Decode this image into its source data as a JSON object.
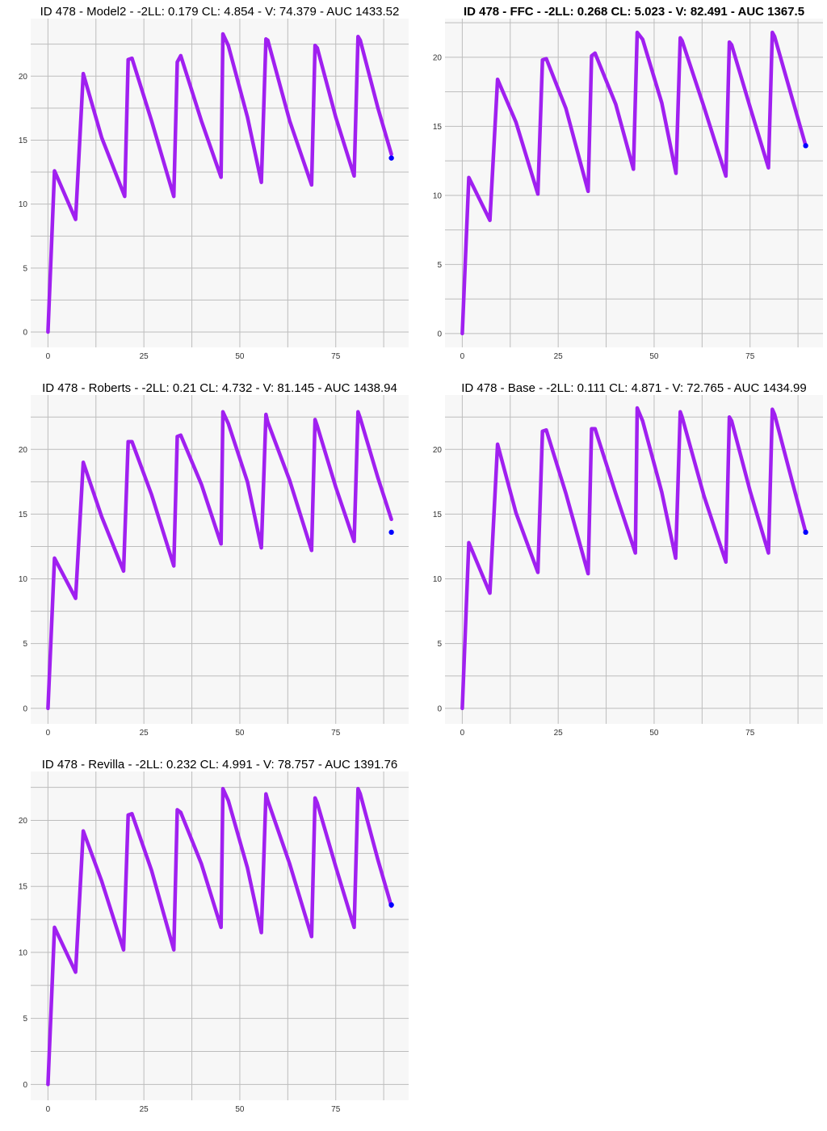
{
  "colors": {
    "panel": "#f7f7f7",
    "line": "#a020f0",
    "point": "#0000ff",
    "grid": "#bdbdbd"
  },
  "chart_data": [
    {
      "type": "line",
      "title": "ID 478 - Model2 - -2LL: 0.179 CL: 4.854 - V: 74.379 - AUC 1433.52",
      "title_bold": false,
      "xlim": [
        -4.5,
        94
      ],
      "ylim": [
        -1.2,
        24.5
      ],
      "xticks": [
        0,
        25,
        50,
        75
      ],
      "xtick_labels": [
        "0",
        "25",
        "50",
        "75"
      ],
      "yticks": [
        0,
        5,
        10,
        15,
        20
      ],
      "ytick_labels": [
        "0",
        "5",
        "10",
        "15",
        "20"
      ],
      "series": [
        {
          "name": "prediction",
          "x": [
            0,
            1.7,
            7.2,
            9.2,
            14,
            20,
            20.9,
            21.9,
            27,
            32.8,
            33.7,
            34.6,
            40,
            45.1,
            45.6,
            47,
            52,
            55.6,
            56.8,
            57.3,
            63,
            68.7,
            69.6,
            70.2,
            75,
            79.8,
            80.8,
            81.4,
            86,
            89.5
          ],
          "y": [
            0,
            12.6,
            8.8,
            20.2,
            15.2,
            10.6,
            21.3,
            21.4,
            16.5,
            10.6,
            21.1,
            21.6,
            16.5,
            12.1,
            23.3,
            22.4,
            16.8,
            11.7,
            22.9,
            22.8,
            16.5,
            11.5,
            22.4,
            22.2,
            16.8,
            12.2,
            23.1,
            22.8,
            17.5,
            13.9
          ]
        }
      ],
      "observed": [
        {
          "x": 89.5,
          "y": 13.6
        }
      ]
    },
    {
      "type": "line",
      "title": "ID 478 - FFC - -2LL: 0.268 CL: 5.023 - V: 82.491 - AUC 1367.5",
      "title_bold": true,
      "xlim": [
        -4.5,
        94
      ],
      "ylim": [
        -1.0,
        22.8
      ],
      "xticks": [
        0,
        25,
        50,
        75
      ],
      "xtick_labels": [
        "0",
        "25",
        "50",
        "75"
      ],
      "yticks": [
        0,
        5,
        10,
        15,
        20
      ],
      "ytick_labels": [
        "0",
        "5",
        "10",
        "15",
        "20"
      ],
      "series": [
        {
          "name": "prediction",
          "x": [
            0,
            1.7,
            7.2,
            9.2,
            14,
            19.7,
            20.9,
            21.9,
            27,
            32.8,
            33.7,
            34.6,
            40,
            44.6,
            45.6,
            47,
            52,
            55.7,
            56.8,
            57.3,
            63,
            68.7,
            69.6,
            70.2,
            75,
            79.8,
            80.8,
            81.4,
            86,
            89.5
          ],
          "y": [
            0,
            11.3,
            8.2,
            18.4,
            15.3,
            10.1,
            19.8,
            19.9,
            16.3,
            10.3,
            20.1,
            20.3,
            16.6,
            11.9,
            21.8,
            21.3,
            16.7,
            11.6,
            21.4,
            21.2,
            16.4,
            11.4,
            21.1,
            20.9,
            16.4,
            12.0,
            21.8,
            21.5,
            17.0,
            13.6
          ]
        }
      ],
      "observed": [
        {
          "x": 89.5,
          "y": 13.6
        }
      ]
    },
    {
      "type": "line",
      "title": "ID 478 - Roberts - -2LL: 0.21 CL: 4.732 - V: 81.145 - AUC 1438.94",
      "title_bold": false,
      "xlim": [
        -4.5,
        94
      ],
      "ylim": [
        -1.2,
        24.2
      ],
      "xticks": [
        0,
        25,
        50,
        75
      ],
      "xtick_labels": [
        "0",
        "25",
        "50",
        "75"
      ],
      "yticks": [
        0,
        5,
        10,
        15,
        20
      ],
      "ytick_labels": [
        "0",
        "5",
        "10",
        "15",
        "20"
      ],
      "series": [
        {
          "name": "prediction",
          "x": [
            0,
            1.7,
            7.2,
            9.2,
            14,
            19.7,
            20.9,
            21.9,
            27,
            32.8,
            33.7,
            34.6,
            40,
            45.1,
            45.6,
            47,
            52,
            55.6,
            56.8,
            57.3,
            63,
            68.7,
            69.6,
            70.2,
            75,
            79.8,
            80.8,
            81.4,
            86,
            89.5
          ],
          "y": [
            0,
            11.6,
            8.5,
            19.0,
            14.8,
            10.6,
            20.6,
            20.6,
            16.5,
            11.0,
            21.0,
            21.1,
            17.3,
            12.7,
            22.9,
            22.0,
            17.5,
            12.4,
            22.7,
            22.1,
            17.6,
            12.2,
            22.3,
            21.8,
            17.1,
            12.9,
            22.9,
            22.4,
            17.8,
            14.6
          ]
        }
      ],
      "observed": [
        {
          "x": 89.5,
          "y": 13.6
        }
      ]
    },
    {
      "type": "line",
      "title": "ID 478 - Base - -2LL: 0.111 CL: 4.871 - V: 72.765 - AUC 1434.99",
      "title_bold": false,
      "xlim": [
        -4.5,
        94
      ],
      "ylim": [
        -1.2,
        24.2
      ],
      "xticks": [
        0,
        25,
        50,
        75
      ],
      "xtick_labels": [
        "0",
        "25",
        "50",
        "75"
      ],
      "yticks": [
        0,
        5,
        10,
        15,
        20
      ],
      "ytick_labels": [
        "0",
        "5",
        "10",
        "15",
        "20"
      ],
      "series": [
        {
          "name": "prediction",
          "x": [
            0,
            1.7,
            7.2,
            9.2,
            14,
            19.7,
            20.9,
            21.9,
            27,
            32.8,
            33.7,
            34.6,
            40,
            45.1,
            45.6,
            47,
            52,
            55.6,
            56.8,
            57.3,
            63,
            68.7,
            69.6,
            70.2,
            75,
            79.8,
            80.8,
            81.4,
            86,
            89.5
          ],
          "y": [
            0,
            12.8,
            8.9,
            20.4,
            15.1,
            10.5,
            21.4,
            21.5,
            16.6,
            10.4,
            21.6,
            21.6,
            16.6,
            12.0,
            23.2,
            22.2,
            16.7,
            11.6,
            22.9,
            22.5,
            16.4,
            11.3,
            22.5,
            22.2,
            16.8,
            12.0,
            23.1,
            22.7,
            17.5,
            13.6
          ]
        }
      ],
      "observed": [
        {
          "x": 89.5,
          "y": 13.6
        }
      ]
    },
    {
      "type": "line",
      "title": "ID 478 - Revilla - -2LL: 0.232 CL: 4.991 - V: 78.757 - AUC 1391.76",
      "title_bold": false,
      "xlim": [
        -4.5,
        94
      ],
      "ylim": [
        -1.2,
        23.7
      ],
      "xticks": [
        0,
        25,
        50,
        75
      ],
      "xtick_labels": [
        "0",
        "25",
        "50",
        "75"
      ],
      "yticks": [
        0,
        5,
        10,
        15,
        20
      ],
      "ytick_labels": [
        "0",
        "5",
        "10",
        "15",
        "20"
      ],
      "series": [
        {
          "name": "prediction",
          "x": [
            0,
            1.7,
            7.2,
            9.2,
            14,
            19.7,
            20.9,
            21.9,
            27,
            32.8,
            33.7,
            34.6,
            40,
            45.1,
            45.6,
            47,
            52,
            55.6,
            56.8,
            57.3,
            63,
            68.7,
            69.6,
            70.2,
            75,
            79.8,
            80.8,
            81.4,
            86,
            89.5
          ],
          "y": [
            0,
            11.9,
            8.5,
            19.2,
            15.4,
            10.2,
            20.4,
            20.5,
            16.2,
            10.2,
            20.8,
            20.6,
            16.7,
            11.9,
            22.4,
            21.5,
            16.4,
            11.5,
            22.0,
            21.5,
            16.7,
            11.2,
            21.7,
            21.3,
            16.5,
            11.9,
            22.4,
            22.0,
            17.0,
            13.5
          ]
        }
      ],
      "observed": [
        {
          "x": 89.5,
          "y": 13.6
        }
      ]
    }
  ]
}
